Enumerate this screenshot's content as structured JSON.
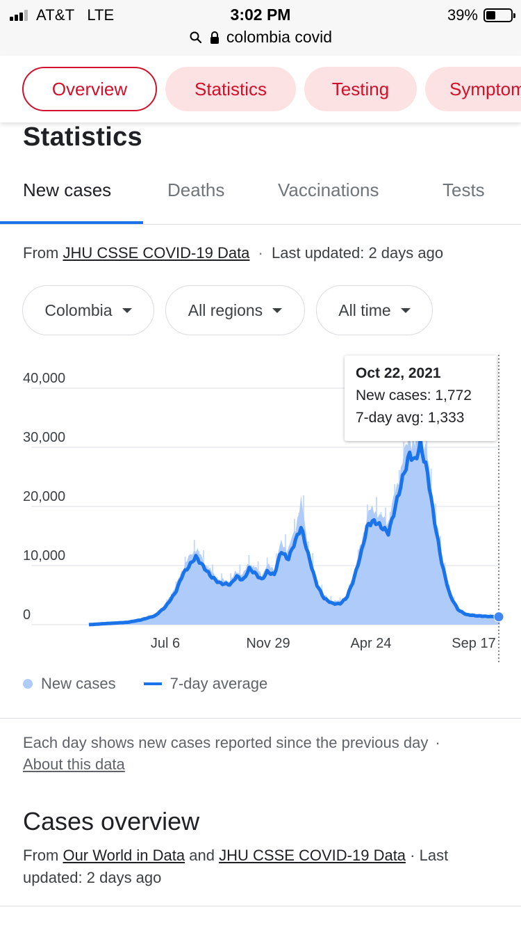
{
  "status_bar": {
    "carrier": "AT&T",
    "network": "LTE",
    "time": "3:02 PM",
    "battery": "39%",
    "battery_level": 0.39
  },
  "url_bar": {
    "query": "colombia covid"
  },
  "chips": [
    {
      "label": "Overview",
      "active": true
    },
    {
      "label": "Statistics",
      "active": false
    },
    {
      "label": "Testing",
      "active": false
    },
    {
      "label": "Symptoms",
      "active": false
    }
  ],
  "heading": "Statistics",
  "tabs": [
    {
      "label": "New cases",
      "active": true
    },
    {
      "label": "Deaths",
      "active": false
    },
    {
      "label": "Vaccinations",
      "active": false
    },
    {
      "label": "Tests",
      "active": false
    }
  ],
  "source": {
    "prefix": "From",
    "link": "JHU CSSE COVID-19 Data",
    "sep": "·",
    "updated": "Last updated: 2 days ago"
  },
  "filters": {
    "country": "Colombia",
    "region": "All regions",
    "range": "All time"
  },
  "chart_data": {
    "type": "area",
    "x_ticks": [
      "Jul 6",
      "Nov 29",
      "Apr 24",
      "Sep 17"
    ],
    "yticks": [
      "0",
      "10,000",
      "20,000",
      "30,000",
      "40,000"
    ],
    "ylim": [
      0,
      40000
    ],
    "grid": true,
    "legend_position": "bottom",
    "series": [
      {
        "name": "New cases",
        "style": "bars",
        "color": "#aecbfa"
      },
      {
        "name": "7-day average",
        "style": "line",
        "color": "#1a73e8"
      }
    ],
    "x_range": [
      "2020-03-06",
      "2021-10-22"
    ],
    "seven_day_average": [
      [
        "2020-03-06",
        0
      ],
      [
        "2020-04-01",
        200
      ],
      [
        "2020-05-01",
        400
      ],
      [
        "2020-05-20",
        800
      ],
      [
        "2020-06-10",
        1500
      ],
      [
        "2020-06-25",
        3000
      ],
      [
        "2020-07-10",
        5500
      ],
      [
        "2020-07-20",
        8500
      ],
      [
        "2020-07-30",
        10000
      ],
      [
        "2020-08-08",
        11500
      ],
      [
        "2020-08-18",
        10000
      ],
      [
        "2020-08-30",
        8200
      ],
      [
        "2020-09-12",
        7000
      ],
      [
        "2020-09-28",
        6800
      ],
      [
        "2020-10-06",
        8200
      ],
      [
        "2020-10-16",
        7500
      ],
      [
        "2020-10-25",
        9500
      ],
      [
        "2020-11-03",
        8600
      ],
      [
        "2020-11-12",
        7600
      ],
      [
        "2020-11-20",
        9000
      ],
      [
        "2020-11-30",
        8400
      ],
      [
        "2020-12-10",
        12500
      ],
      [
        "2020-12-20",
        11000
      ],
      [
        "2020-12-30",
        14000
      ],
      [
        "2021-01-08",
        16500
      ],
      [
        "2021-01-18",
        12000
      ],
      [
        "2021-01-30",
        7000
      ],
      [
        "2021-02-10",
        4500
      ],
      [
        "2021-02-22",
        3600
      ],
      [
        "2021-03-05",
        3500
      ],
      [
        "2021-03-15",
        4500
      ],
      [
        "2021-03-25",
        7500
      ],
      [
        "2021-04-05",
        12000
      ],
      [
        "2021-04-15",
        17000
      ],
      [
        "2021-04-25",
        17500
      ],
      [
        "2021-05-05",
        16500
      ],
      [
        "2021-05-15",
        15500
      ],
      [
        "2021-05-25",
        20000
      ],
      [
        "2021-06-05",
        25000
      ],
      [
        "2021-06-15",
        29000
      ],
      [
        "2021-06-22",
        27500
      ],
      [
        "2021-06-30",
        30500
      ],
      [
        "2021-07-10",
        26000
      ],
      [
        "2021-07-20",
        18000
      ],
      [
        "2021-08-01",
        10000
      ],
      [
        "2021-08-12",
        5000
      ],
      [
        "2021-08-24",
        2500
      ],
      [
        "2021-09-05",
        1700
      ],
      [
        "2021-09-20",
        1500
      ],
      [
        "2021-10-05",
        1400
      ],
      [
        "2021-10-22",
        1333
      ]
    ],
    "daily_new_cases": [
      [
        "2020-03-06",
        0
      ],
      [
        "2020-04-01",
        200
      ],
      [
        "2020-05-01",
        450
      ],
      [
        "2020-05-20",
        900
      ],
      [
        "2020-06-10",
        1700
      ],
      [
        "2020-06-25",
        3500
      ],
      [
        "2020-07-10",
        6500
      ],
      [
        "2020-07-20",
        9500
      ],
      [
        "2020-07-30",
        11500
      ],
      [
        "2020-08-08",
        13000
      ],
      [
        "2020-08-18",
        11000
      ],
      [
        "2020-08-30",
        9000
      ],
      [
        "2020-09-12",
        7500
      ],
      [
        "2020-09-28",
        7500
      ],
      [
        "2020-10-06",
        9000
      ],
      [
        "2020-10-16",
        8500
      ],
      [
        "2020-10-25",
        10500
      ],
      [
        "2020-11-03",
        9500
      ],
      [
        "2020-11-12",
        8500
      ],
      [
        "2020-11-20",
        10000
      ],
      [
        "2020-11-30",
        9500
      ],
      [
        "2020-12-10",
        14000
      ],
      [
        "2020-12-20",
        12500
      ],
      [
        "2020-12-30",
        16000
      ],
      [
        "2021-01-08",
        21000
      ],
      [
        "2021-01-18",
        13500
      ],
      [
        "2021-01-30",
        7500
      ],
      [
        "2021-02-10",
        5000
      ],
      [
        "2021-02-22",
        4000
      ],
      [
        "2021-03-05",
        4000
      ],
      [
        "2021-03-15",
        5000
      ],
      [
        "2021-03-25",
        8500
      ],
      [
        "2021-04-05",
        13500
      ],
      [
        "2021-04-15",
        19000
      ],
      [
        "2021-04-25",
        19500
      ],
      [
        "2021-05-05",
        18000
      ],
      [
        "2021-05-15",
        17500
      ],
      [
        "2021-05-25",
        22500
      ],
      [
        "2021-06-05",
        28000
      ],
      [
        "2021-06-15",
        32000
      ],
      [
        "2021-06-22",
        30000
      ],
      [
        "2021-06-30",
        33500
      ],
      [
        "2021-07-10",
        28500
      ],
      [
        "2021-07-20",
        20000
      ],
      [
        "2021-08-01",
        11000
      ],
      [
        "2021-08-12",
        5500
      ],
      [
        "2021-08-24",
        2700
      ],
      [
        "2021-09-05",
        1900
      ],
      [
        "2021-09-20",
        1700
      ],
      [
        "2021-10-05",
        1600
      ],
      [
        "2021-10-22",
        1772
      ]
    ],
    "tooltip": {
      "date": "Oct 22, 2021",
      "new_cases": "New cases: 1,772",
      "avg": "7-day avg: 1,333"
    },
    "legend": [
      "New cases",
      "7-day average"
    ]
  },
  "note": {
    "text": "Each day shows new cases reported since the previous day",
    "sep": "·",
    "link": "About this data"
  },
  "overview": {
    "title": "Cases overview",
    "from": "From",
    "link1": "Our World in Data",
    "and": "and",
    "link2": "JHU CSSE COVID-19 Data",
    "tail": "· Last updated: 2 days ago"
  }
}
